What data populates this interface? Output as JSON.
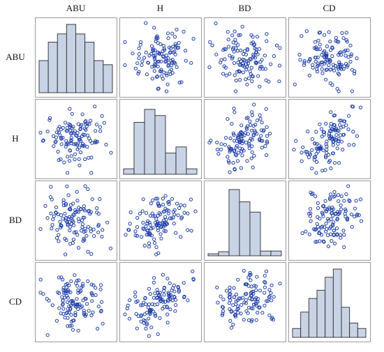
{
  "chart_data": {
    "type": "scatter-matrix",
    "variables": [
      "ABU",
      "H",
      "BD",
      "CD"
    ],
    "marker": {
      "shape": "open-circle",
      "color": "#1f3fa8"
    },
    "histogram_fill": "#c9d3e6",
    "histogram_stroke": "#2b2b2b",
    "histograms": {
      "ABU": [
        0.47,
        0.74,
        0.86,
        1.0,
        0.86,
        0.74,
        0.47,
        0.41
      ],
      "H": [
        0.08,
        0.76,
        0.95,
        0.86,
        0.31,
        0.4,
        0.08
      ],
      "BD": [
        0.03,
        0.06,
        0.97,
        0.79,
        0.64,
        0.07,
        0.07
      ],
      "CD": [
        0.13,
        0.37,
        0.57,
        0.69,
        0.88,
        1.0,
        0.44,
        0.21,
        0.13
      ]
    },
    "samples": {
      "n": 120,
      "correlation": {
        "ABU-H": 0.0,
        "ABU-BD": -0.1,
        "ABU-CD": 0.1,
        "H-BD": 0.3,
        "H-CD": 0.55,
        "BD-CD": 0.15
      }
    }
  }
}
